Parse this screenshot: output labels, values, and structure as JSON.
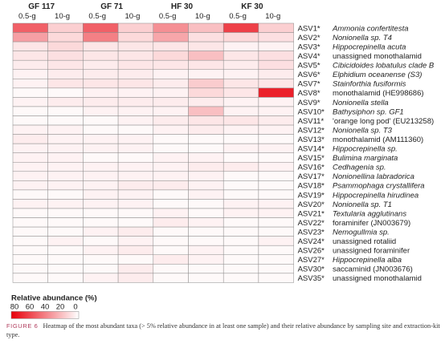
{
  "chart_data": {
    "type": "heatmap",
    "title": "",
    "sites": [
      "GF 117",
      "GF 71",
      "HF 30",
      "KF 30"
    ],
    "kits": [
      "0.5-g",
      "10-g"
    ],
    "columns": [
      "GF 117 0.5-g",
      "GF 117 10-g",
      "GF 71 0.5-g",
      "GF 71 10-g",
      "HF 30 0.5-g",
      "HF 30 10-g",
      "KF 30 0.5-g",
      "KF 30 10-g"
    ],
    "rows": [
      {
        "asv": "ASV1*",
        "taxon": "Ammonia confertitesta",
        "italic": true
      },
      {
        "asv": "ASV2*",
        "taxon": "Nonionella sp. T4",
        "italic": true
      },
      {
        "asv": "ASV3*",
        "taxon": "Hippocrepinella acuta",
        "italic": true
      },
      {
        "asv": "ASV4*",
        "taxon": "unassigned monothalamid",
        "italic": false
      },
      {
        "asv": "ASV5*",
        "taxon": "Cibicidoides lobatulus clade B",
        "italic": true
      },
      {
        "asv": "ASV6*",
        "taxon": "Elphidium oceanense (S3)",
        "italic": true
      },
      {
        "asv": "ASV7*",
        "taxon": "Stainforthia fusiformis",
        "italic": true
      },
      {
        "asv": "ASV8*",
        "taxon": "monothalamid (HE998686)",
        "italic": false
      },
      {
        "asv": "ASV9*",
        "taxon": "Nonionella stella",
        "italic": true
      },
      {
        "asv": "ASV10*",
        "taxon": "Bathysiphon sp. GF1",
        "italic": true
      },
      {
        "asv": "ASV11*",
        "taxon": "'orange long pod' (EU213258)",
        "italic": false
      },
      {
        "asv": "ASV12*",
        "taxon": "Nonionella sp. T3",
        "italic": true
      },
      {
        "asv": "ASV13*",
        "taxon": "monothalamid (AM111360)",
        "italic": false
      },
      {
        "asv": "ASV14*",
        "taxon": "Hippocrepinella sp.",
        "italic": true
      },
      {
        "asv": "ASV15*",
        "taxon": "Bulimina marginata",
        "italic": true
      },
      {
        "asv": "ASV16*",
        "taxon": "Cedhagenia sp.",
        "italic": true
      },
      {
        "asv": "ASV17*",
        "taxon": "Nonionellina labradorica",
        "italic": true
      },
      {
        "asv": "ASV18*",
        "taxon": "Psammophaga crystallifera",
        "italic": true
      },
      {
        "asv": "ASV19*",
        "taxon": "Hippocrepinella hirudinea",
        "italic": true
      },
      {
        "asv": "ASV20*",
        "taxon": "Nonionella sp. T1",
        "italic": true
      },
      {
        "asv": "ASV21*",
        "taxon": "Textularia agglutinans",
        "italic": true
      },
      {
        "asv": "ASV22*",
        "taxon": "foraminifer (JN003679)",
        "italic": false
      },
      {
        "asv": "ASV23*",
        "taxon": "Nemogullmia sp.",
        "italic": true
      },
      {
        "asv": "ASV24*",
        "taxon": "unassigned rotaliid",
        "italic": false
      },
      {
        "asv": "ASV26*",
        "taxon": "unassigned foraminifer",
        "italic": false
      },
      {
        "asv": "ASV27*",
        "taxon": "Hippocrepinella alba",
        "italic": true
      },
      {
        "asv": "ASV30*",
        "taxon": "saccaminid (JN003676)",
        "italic": false
      },
      {
        "asv": "ASV35*",
        "taxon": "unassigned monothalamid",
        "italic": false
      }
    ],
    "values": [
      [
        50,
        15,
        50,
        15,
        35,
        20,
        60,
        15
      ],
      [
        30,
        12,
        40,
        12,
        28,
        10,
        12,
        10
      ],
      [
        8,
        12,
        8,
        8,
        8,
        8,
        4,
        4
      ],
      [
        8,
        10,
        8,
        8,
        12,
        20,
        8,
        10
      ],
      [
        6,
        8,
        6,
        8,
        8,
        8,
        6,
        10
      ],
      [
        4,
        6,
        6,
        6,
        4,
        4,
        4,
        6
      ],
      [
        4,
        8,
        8,
        8,
        6,
        16,
        8,
        8
      ],
      [
        2,
        2,
        4,
        4,
        4,
        12,
        8,
        70
      ],
      [
        4,
        6,
        6,
        6,
        6,
        6,
        4,
        4
      ],
      [
        2,
        2,
        4,
        4,
        4,
        20,
        4,
        4
      ],
      [
        2,
        2,
        2,
        4,
        6,
        8,
        8,
        6
      ],
      [
        4,
        4,
        2,
        2,
        4,
        6,
        4,
        4
      ],
      [
        6,
        4,
        4,
        4,
        2,
        2,
        2,
        2
      ],
      [
        4,
        4,
        4,
        4,
        2,
        2,
        4,
        4
      ],
      [
        4,
        4,
        2,
        2,
        4,
        4,
        2,
        2
      ],
      [
        4,
        4,
        4,
        4,
        4,
        6,
        6,
        4
      ],
      [
        4,
        4,
        4,
        4,
        4,
        4,
        2,
        2
      ],
      [
        4,
        4,
        4,
        6,
        6,
        4,
        2,
        2
      ],
      [
        2,
        2,
        4,
        4,
        2,
        4,
        2,
        2
      ],
      [
        4,
        4,
        4,
        4,
        2,
        2,
        4,
        4
      ],
      [
        2,
        2,
        2,
        2,
        4,
        2,
        4,
        4
      ],
      [
        2,
        2,
        2,
        2,
        6,
        4,
        2,
        2
      ],
      [
        2,
        2,
        4,
        6,
        2,
        2,
        2,
        2
      ],
      [
        2,
        4,
        2,
        4,
        2,
        2,
        2,
        4
      ],
      [
        2,
        2,
        4,
        6,
        2,
        4,
        2,
        2
      ],
      [
        2,
        2,
        2,
        2,
        6,
        4,
        2,
        2
      ],
      [
        2,
        2,
        2,
        6,
        2,
        2,
        2,
        2
      ],
      [
        2,
        2,
        4,
        6,
        2,
        2,
        2,
        2
      ]
    ],
    "color_scale": {
      "min": 0,
      "max": 80,
      "low_color": "#ffffff",
      "high_color": "#e8000b"
    },
    "legend": {
      "title": "Relative abundance (%)",
      "ticks": [
        "80",
        "60",
        "40",
        "20",
        "0"
      ],
      "placement": "bottom-left"
    }
  },
  "caption": {
    "label": "FIGURE 6",
    "text": "Heatmap of the most abundant taxa (> 5% relative abundance in at least one sample) and their relative abundance by sampling site and extraction-kit type."
  }
}
